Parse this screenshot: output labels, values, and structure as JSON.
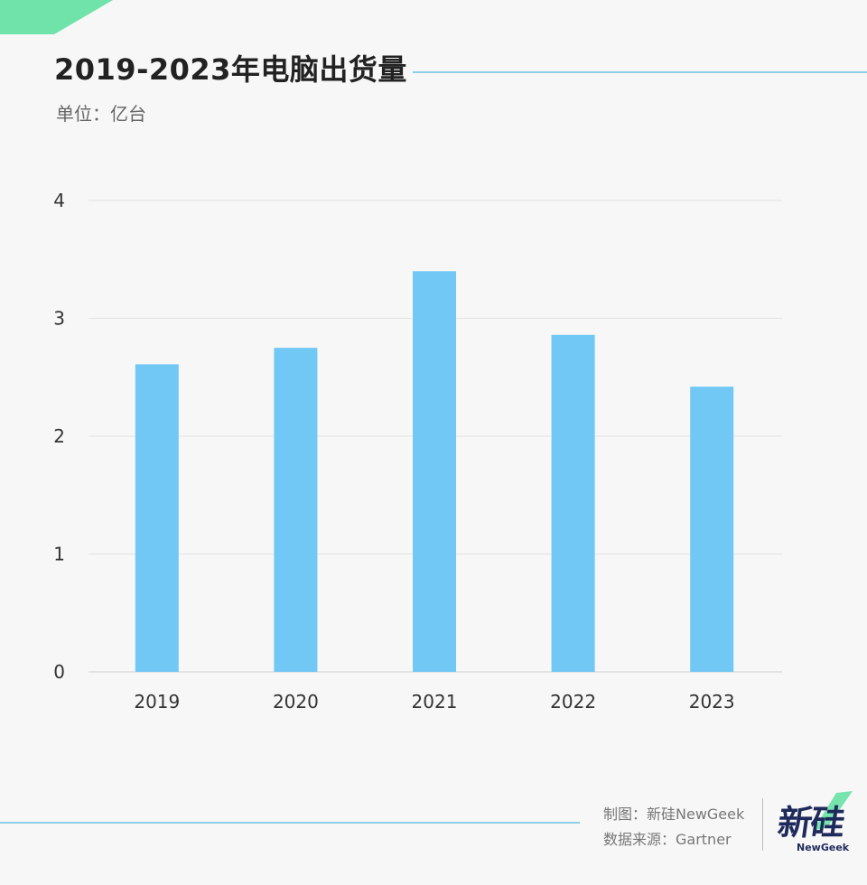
{
  "header": {
    "title": "2019-2023年电脑出货量",
    "unit": "单位：亿台"
  },
  "chart_data": {
    "type": "bar",
    "categories": [
      "2019",
      "2020",
      "2021",
      "2022",
      "2023"
    ],
    "values": [
      2.61,
      2.75,
      3.4,
      2.86,
      2.42
    ],
    "ylim": [
      0,
      4
    ],
    "yticks": [
      "0",
      "1",
      "2",
      "3",
      "4"
    ],
    "grid": true,
    "bar_color": "#71c8f5"
  },
  "footer": {
    "credit_maker": "制图：新硅NewGeek",
    "credit_source": "数据来源：Gartner",
    "logo_main": "新硅",
    "logo_sub": "NewGeek"
  },
  "colors": {
    "accent_line": "#8fcfe6",
    "accent_green": "#5fe0a0",
    "logo_ink": "#1f2a5c"
  }
}
